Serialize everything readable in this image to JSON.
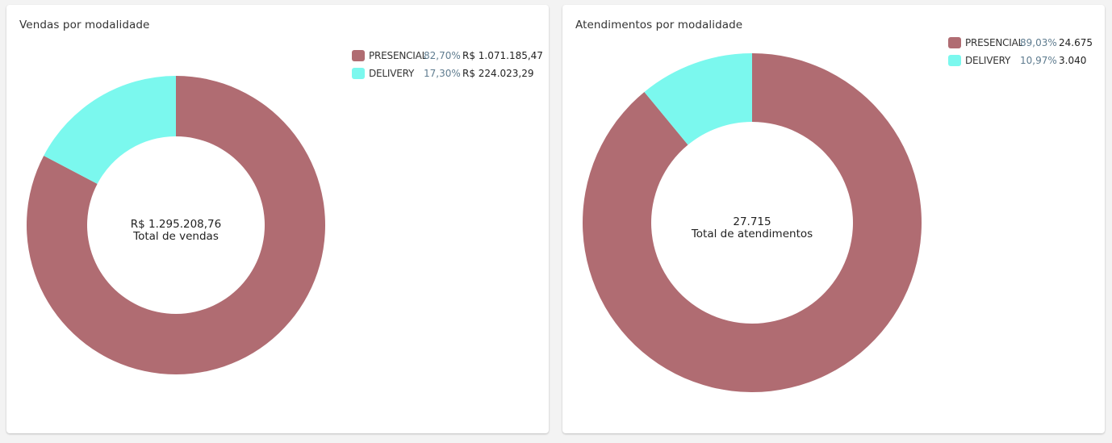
{
  "colors": {
    "presencial": "#b06c72",
    "delivery": "#7bf8ee"
  },
  "chart_data": [
    {
      "type": "pie",
      "title": "Vendas por modalidade",
      "categories": [
        "PRESENCIAL",
        "DELIVERY"
      ],
      "values": [
        82.7,
        17.3
      ],
      "legend": [
        {
          "name": "PRESENCIAL",
          "pct": "82,70%",
          "value": "R$ 1.071.185,47"
        },
        {
          "name": "DELIVERY",
          "pct": "17,30%",
          "value": "R$ 224.023,29"
        }
      ],
      "center_value": "R$ 1.295.208,76",
      "center_label": "Total de vendas",
      "legend_position": "top-right"
    },
    {
      "type": "pie",
      "title": "Atendimentos por modalidade",
      "categories": [
        "PRESENCIAL",
        "DELIVERY"
      ],
      "values": [
        89.03,
        10.97
      ],
      "legend": [
        {
          "name": "PRESENCIAL",
          "pct": "89,03%",
          "value": "24.675"
        },
        {
          "name": "DELIVERY",
          "pct": "10,97%",
          "value": "3.040"
        }
      ],
      "center_value": "27.715",
      "center_label": "Total de atendimentos",
      "legend_position": "top-right"
    }
  ]
}
